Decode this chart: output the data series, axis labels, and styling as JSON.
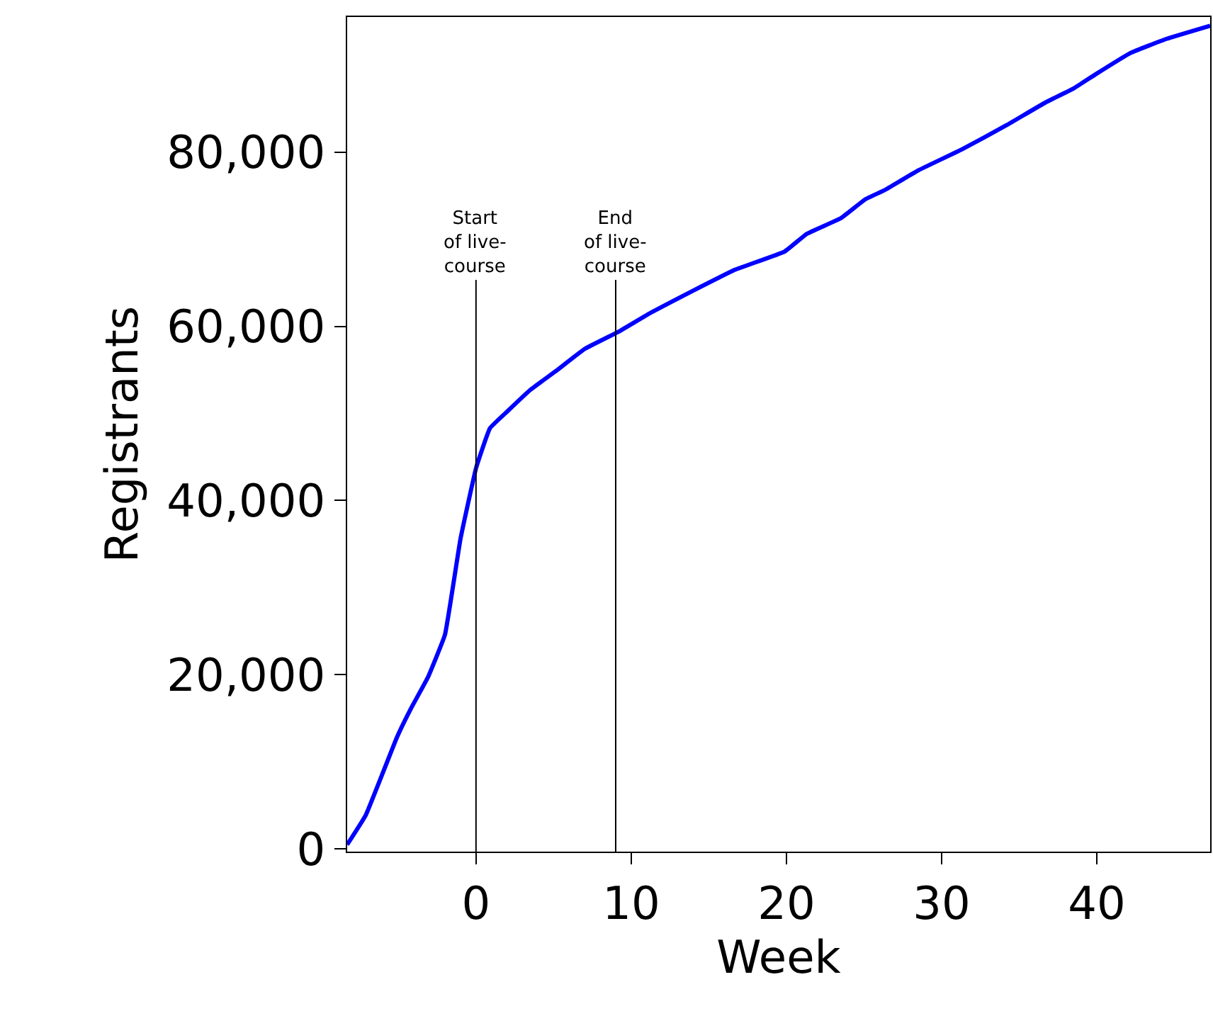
{
  "chart_data": {
    "type": "line",
    "xlabel": "Week",
    "ylabel": "Registrants",
    "x": [
      -8.3,
      -7.1,
      -5.1,
      -4.2,
      -3.1,
      -2,
      -1,
      0,
      0.9,
      2,
      3.5,
      5.1,
      7,
      9.1,
      11.3,
      14,
      16.7,
      19.9,
      21.3,
      23.5,
      25.1,
      26.3,
      28.5,
      31.3,
      34.2,
      36.7,
      38.5,
      39.9,
      42.2,
      44.5,
      47.3
    ],
    "series": [
      {
        "color": "#0000ff",
        "values": [
          500,
          3900,
          12800,
          16100,
          19700,
          24600,
          35600,
          43700,
          48300,
          50200,
          52700,
          54800,
          57400,
          59300,
          61600,
          64100,
          66500,
          68600,
          70600,
          72400,
          74600,
          75600,
          77900,
          80300,
          83100,
          85700,
          87300,
          88900,
          91400,
          93000,
          94500
        ]
      }
    ],
    "xlim": [
      -8.3,
      47.3
    ],
    "ylim": [
      -300,
      95500
    ],
    "xticks": [
      0,
      10,
      20,
      30,
      40
    ],
    "yticks": [
      {
        "value": 0,
        "label": "0"
      },
      {
        "value": 20000,
        "label": "20,000"
      },
      {
        "value": 40000,
        "label": "40,000"
      },
      {
        "value": 60000,
        "label": "60,000"
      },
      {
        "value": 80000,
        "label": "80,000"
      }
    ],
    "ref_lines": [
      {
        "axis": "x",
        "value": 0,
        "label": "Start\nof live-\ncourse",
        "color": "#000000"
      },
      {
        "axis": "x",
        "value": 9,
        "label": "End\nof live-\ncourse",
        "color": "#000000"
      }
    ],
    "legend": false,
    "marker": "none",
    "line_style": "solid"
  }
}
